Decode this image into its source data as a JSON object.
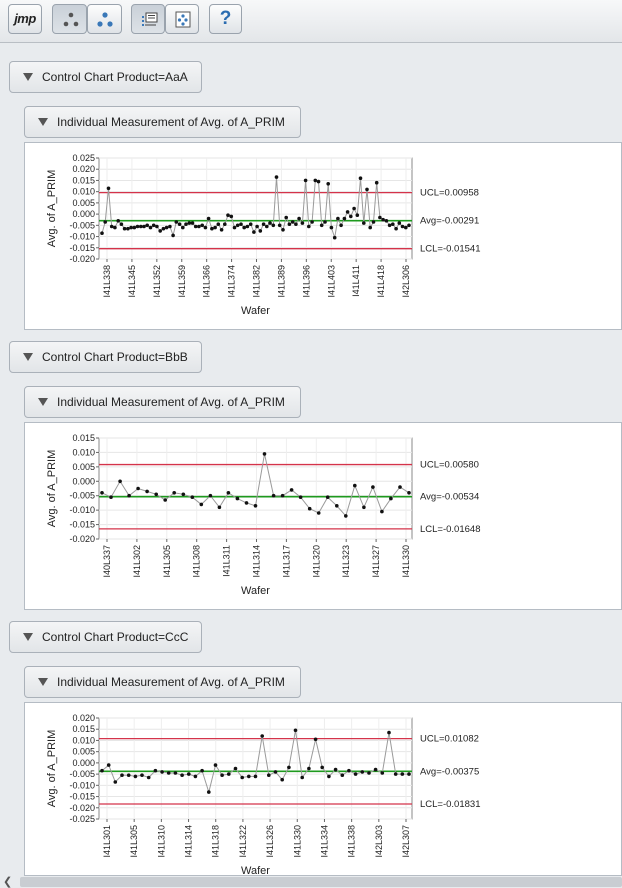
{
  "toolbar": {
    "logo_text": "jmp",
    "buttons": [
      {
        "name": "jmp-home-button",
        "icon": "jmp-logo-icon",
        "pressed": false
      },
      {
        "name": "arrange-windows-button",
        "icon": "scatter-dots-icon",
        "pressed": true
      },
      {
        "name": "triple-dots-button",
        "icon": "triangle-dots-icon",
        "pressed": false
      },
      {
        "name": "show-report-button",
        "icon": "report-list-icon",
        "pressed": true
      },
      {
        "name": "data-table-button",
        "icon": "data-grid-icon",
        "pressed": false
      },
      {
        "name": "help-button",
        "icon": "help-icon",
        "label": "?",
        "pressed": false
      }
    ]
  },
  "sections": [
    {
      "header": "Control Chart Product=AaA",
      "sub_header": "Individual Measurement of Avg. of A_PRIM",
      "limits": {
        "ucl_label": "UCL=0.00958",
        "avg_label": "Avg=-0.00291",
        "lcl_label": "LCL=-0.01541"
      }
    },
    {
      "header": "Control Chart Product=BbB",
      "sub_header": "Individual Measurement of Avg. of A_PRIM",
      "limits": {
        "ucl_label": "UCL=0.00580",
        "avg_label": "Avg=-0.00534",
        "lcl_label": "LCL=-0.01648"
      }
    },
    {
      "header": "Control Chart Product=CcC",
      "sub_header": "Individual Measurement of Avg. of A_PRIM",
      "limits": {
        "ucl_label": "UCL=0.01082",
        "avg_label": "Avg=-0.00375",
        "lcl_label": "LCL=-0.01831"
      }
    }
  ],
  "chart_data": [
    {
      "type": "line",
      "title": "Individual Measurement of Avg. of A_PRIM",
      "xlabel": "Wafer",
      "ylabel": "Avg. of  A_PRIM",
      "ylim": [
        -0.02,
        0.025
      ],
      "yticks": [
        0.025,
        0.02,
        0.015,
        0.01,
        0.005,
        0.0,
        -0.005,
        -0.01,
        -0.015,
        -0.02
      ],
      "ytick_labels": [
        "0.025",
        "0.020",
        "0.015",
        "0.010",
        "0.005",
        "0.000",
        "-0.005",
        "-0.010",
        "-0.015",
        "-0.020"
      ],
      "xtick_labels": [
        "I41L338",
        "I41L345",
        "I41L352",
        "I41L359",
        "I41L366",
        "I41L374",
        "I41L382",
        "I41L389",
        "I41L396",
        "I41L403",
        "I41L411",
        "I41L418",
        "I42L306"
      ],
      "ucl": 0.00958,
      "avg": -0.00291,
      "lcl": -0.01541,
      "values": [
        -0.0085,
        -0.0035,
        0.0115,
        -0.0055,
        -0.006,
        -0.003,
        -0.0045,
        -0.0065,
        -0.0065,
        -0.006,
        -0.006,
        -0.0055,
        -0.0055,
        -0.0055,
        -0.005,
        -0.006,
        -0.005,
        -0.0055,
        -0.0075,
        -0.0065,
        -0.006,
        -0.0055,
        -0.0095,
        -0.0035,
        -0.0045,
        -0.006,
        -0.0045,
        -0.004,
        -0.004,
        -0.0055,
        -0.0055,
        -0.005,
        -0.006,
        -0.002,
        -0.0065,
        -0.006,
        -0.0045,
        -0.007,
        -0.0045,
        -0.0005,
        -0.001,
        -0.006,
        -0.005,
        -0.0045,
        -0.006,
        -0.0055,
        -0.0045,
        -0.008,
        -0.0055,
        -0.0075,
        -0.0045,
        -0.0055,
        -0.004,
        -0.005,
        0.0165,
        -0.005,
        -0.007,
        -0.0015,
        -0.0045,
        -0.0035,
        -0.0045,
        -0.002,
        -0.004,
        0.015,
        -0.0055,
        -0.0035,
        0.015,
        0.0145,
        -0.005,
        -0.0035,
        0.0135,
        -0.006,
        -0.0105,
        -0.002,
        -0.005,
        -0.002,
        0.001,
        -0.001,
        0.0025,
        -0.0005,
        0.016,
        -0.004,
        0.011,
        -0.006,
        -0.0035,
        0.014,
        -0.0015,
        -0.0025,
        -0.003,
        -0.005,
        -0.0045,
        -0.0065,
        -0.004,
        -0.0055,
        -0.006,
        -0.005
      ]
    },
    {
      "type": "line",
      "title": "Individual Measurement of Avg. of A_PRIM",
      "xlabel": "Wafer",
      "ylabel": "Avg. of  A_PRIM",
      "ylim": [
        -0.02,
        0.015
      ],
      "yticks": [
        0.015,
        0.01,
        0.005,
        0.0,
        -0.005,
        -0.01,
        -0.015,
        -0.02
      ],
      "ytick_labels": [
        "0.015",
        "0.010",
        "0.005",
        "0.000",
        "-0.005",
        "-0.010",
        "-0.015",
        "-0.020"
      ],
      "xtick_labels": [
        "I40L337",
        "I41L302",
        "I41L305",
        "I41L308",
        "I41L311",
        "I41L314",
        "I41L317",
        "I41L320",
        "I41L323",
        "I41L327",
        "I41L330"
      ],
      "ucl": 0.0058,
      "avg": -0.00534,
      "lcl": -0.01648,
      "values": [
        -0.004,
        -0.0055,
        0.0,
        -0.005,
        -0.0025,
        -0.0035,
        -0.0045,
        -0.0065,
        -0.004,
        -0.0045,
        -0.0055,
        -0.008,
        -0.005,
        -0.009,
        -0.004,
        -0.006,
        -0.0075,
        -0.0085,
        0.0095,
        -0.005,
        -0.005,
        -0.003,
        -0.0055,
        -0.0095,
        -0.011,
        -0.0055,
        -0.0085,
        -0.012,
        -0.0015,
        -0.009,
        -0.002,
        -0.0105,
        -0.006,
        -0.002,
        -0.004
      ]
    },
    {
      "type": "line",
      "title": "Individual Measurement of Avg. of A_PRIM",
      "xlabel": "Wafer",
      "ylabel": "Avg. of  A_PRIM",
      "ylim": [
        -0.025,
        0.02
      ],
      "yticks": [
        0.02,
        0.015,
        0.01,
        0.005,
        0.0,
        -0.005,
        -0.01,
        -0.015,
        -0.02,
        -0.025
      ],
      "ytick_labels": [
        "0.020",
        "0.015",
        "0.010",
        "0.005",
        "0.000",
        "-0.005",
        "-0.010",
        "-0.015",
        "-0.020",
        "-0.025"
      ],
      "xtick_labels": [
        "I41L301",
        "I41L305",
        "I41L310",
        "I41L314",
        "I41L318",
        "I41L322",
        "I41L326",
        "I41L330",
        "I41L334",
        "I41L338",
        "I42L303",
        "I42L307"
      ],
      "ucl": 0.01082,
      "avg": -0.00375,
      "lcl": -0.01831,
      "values": [
        -0.0035,
        -0.001,
        -0.0085,
        -0.0055,
        -0.0055,
        -0.006,
        -0.0055,
        -0.0065,
        -0.0035,
        -0.004,
        -0.0045,
        -0.0045,
        -0.0055,
        -0.005,
        -0.006,
        -0.0035,
        -0.013,
        -0.001,
        -0.0055,
        -0.005,
        -0.0025,
        -0.0065,
        -0.006,
        -0.006,
        0.012,
        -0.0055,
        -0.004,
        -0.0075,
        -0.002,
        0.0145,
        -0.0065,
        -0.0025,
        0.0105,
        -0.002,
        -0.006,
        -0.003,
        -0.0055,
        -0.0035,
        -0.005,
        -0.004,
        -0.0045,
        -0.003,
        -0.0045,
        0.0135,
        -0.005,
        -0.005,
        -0.005
      ]
    }
  ]
}
